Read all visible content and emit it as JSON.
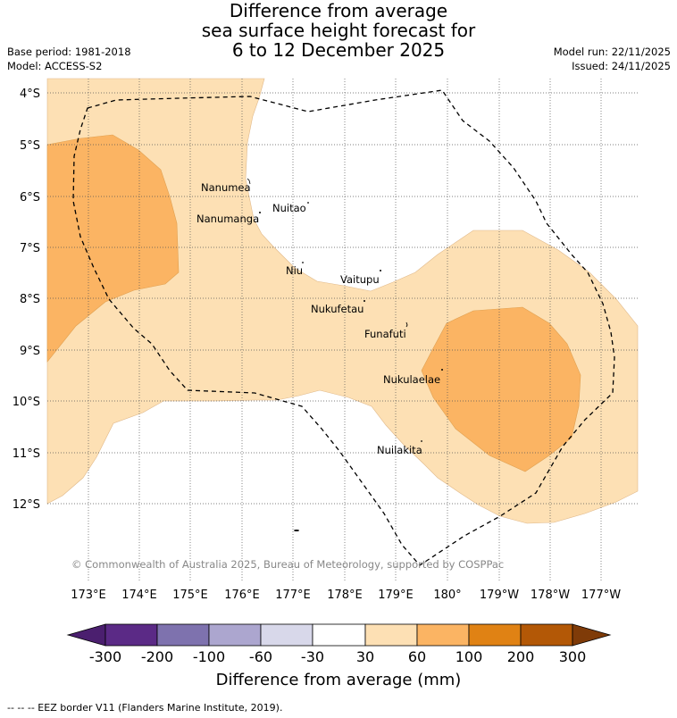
{
  "title": {
    "line1": "Difference from average",
    "line2": "sea surface height forecast for",
    "line3": "6 to 12 December 2025"
  },
  "meta": {
    "base_period": "Base period: 1981-2018",
    "model": "Model: ACCESS-S2",
    "model_run": "Model run: 22/11/2025",
    "issued": "Issued: 24/11/2025"
  },
  "map": {
    "lat_labels": [
      "4°S",
      "5°S",
      "6°S",
      "7°S",
      "8°S",
      "9°S",
      "10°S",
      "11°S",
      "12°S"
    ],
    "lon_labels": [
      "173°E",
      "174°E",
      "175°E",
      "176°E",
      "177°E",
      "178°E",
      "179°E",
      "180°",
      "179°W",
      "178°W",
      "177°W"
    ],
    "islands": [
      {
        "name": "Nanumea"
      },
      {
        "name": "Nuitao"
      },
      {
        "name": "Nanumanga"
      },
      {
        "name": "Niu"
      },
      {
        "name": "Vaitupu"
      },
      {
        "name": "Nukufetau"
      },
      {
        "name": "Funafuti"
      },
      {
        "name": "Nukulaelae"
      },
      {
        "name": "Nuilakita"
      }
    ],
    "copyright": "© Commonwealth of Australia 2025, Bureau of Meteorology, supported by COSPPac"
  },
  "colorbar": {
    "ticks": [
      "-300",
      "-200",
      "-100",
      "-60",
      "-30",
      "30",
      "60",
      "100",
      "200",
      "300"
    ],
    "colors": [
      "#4b1f6f",
      "#5b2a86",
      "#7e72ae",
      "#aca6cf",
      "#d8d8ea",
      "#ffffff",
      "#fde0b4",
      "#fbb463",
      "#e08214",
      "#b35806",
      "#7f3b08"
    ],
    "label": "Difference from average (mm)"
  },
  "footer": "-- -- -- EEZ border V11 (Flanders Marine Institute, 2019)."
}
